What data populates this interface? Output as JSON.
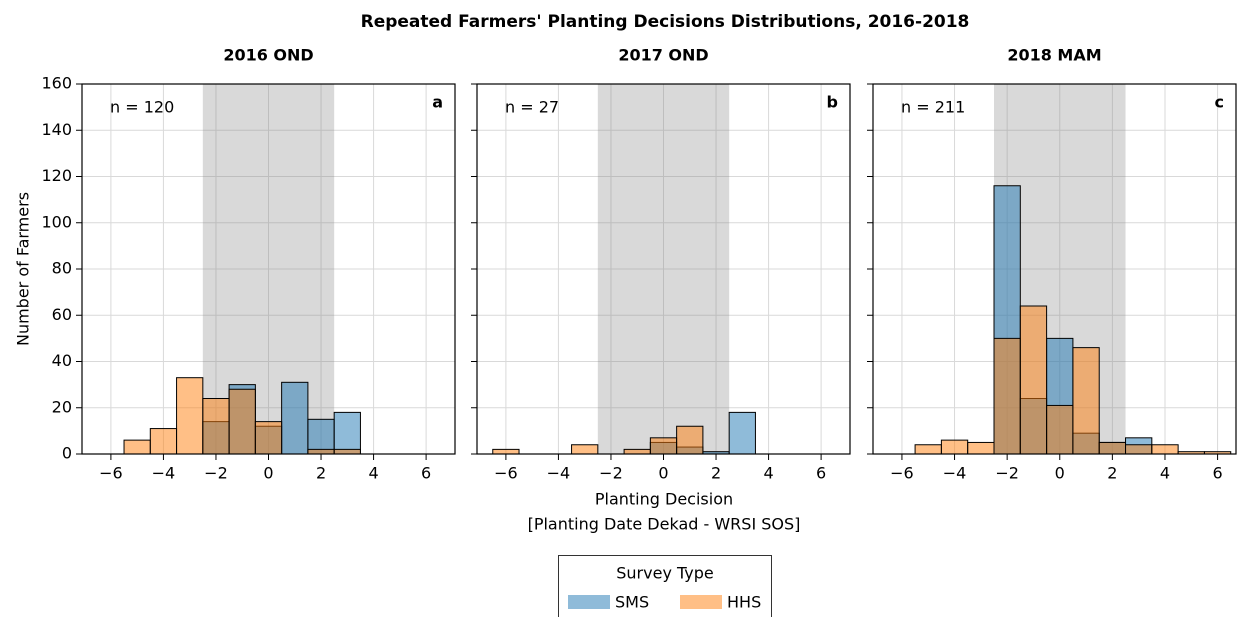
{
  "title": "Repeated Farmers' Planting Decisions Distributions, 2016-2018",
  "xlabel": [
    "Planting Decision",
    "[Planting Date Dekad - WRSI SOS]"
  ],
  "ylabel": "Number of Farmers",
  "legend_title": "Survey Type",
  "chart_data": [
    {
      "type": "histogram",
      "title": "2016 OND",
      "panel_label": "a",
      "annotation": "n = 120",
      "bins": [
        -6.5,
        -5.5,
        -4.5,
        -3.5,
        -2.5,
        -1.5,
        -0.5,
        0.5,
        1.5,
        2.5,
        3.5,
        4.5,
        5.5,
        6.5
      ],
      "series": [
        {
          "name": "SMS",
          "color": "#1f77b4",
          "values": [
            0,
            0,
            0,
            0,
            14,
            30,
            12,
            31,
            15,
            18,
            0,
            0,
            0
          ]
        },
        {
          "name": "HHS",
          "color": "#ff7f0e",
          "values": [
            0,
            6,
            11,
            33,
            24,
            28,
            14,
            0,
            2,
            2,
            0,
            0,
            0
          ]
        }
      ],
      "shaded_span": [
        -2.5,
        2.5
      ],
      "xlim": [
        -7.1,
        7.1
      ],
      "ylim": [
        0,
        160
      ],
      "xticks": [
        {
          "value": -6,
          "label": "−6"
        },
        {
          "value": -4,
          "label": "−4"
        },
        {
          "value": -2,
          "label": "−2"
        },
        0,
        2,
        4,
        6
      ],
      "yticks": [
        0,
        20,
        40,
        60,
        80,
        100,
        120,
        140,
        160
      ],
      "grid": true
    },
    {
      "type": "histogram",
      "title": "2017 OND",
      "panel_label": "b",
      "annotation": "n = 27",
      "bins": [
        -6.5,
        -5.5,
        -4.5,
        -3.5,
        -2.5,
        -1.5,
        -0.5,
        0.5,
        1.5,
        2.5,
        3.5,
        4.5,
        5.5,
        6.5
      ],
      "series": [
        {
          "name": "SMS",
          "color": "#1f77b4",
          "values": [
            0,
            0,
            0,
            0,
            0,
            0,
            5,
            3,
            1,
            18,
            0,
            0,
            0
          ]
        },
        {
          "name": "HHS",
          "color": "#ff7f0e",
          "values": [
            2,
            0,
            0,
            4,
            0,
            2,
            7,
            12,
            0,
            0,
            0,
            0,
            0
          ]
        }
      ],
      "shaded_span": [
        -2.5,
        2.5
      ],
      "xlim": [
        -7.1,
        7.1
      ],
      "ylim": [
        0,
        160
      ],
      "xticks": [
        {
          "value": -6,
          "label": "−6"
        },
        {
          "value": -4,
          "label": "−4"
        },
        {
          "value": -2,
          "label": "−2"
        },
        0,
        2,
        4,
        6
      ],
      "yticks": [
        0,
        20,
        40,
        60,
        80,
        100,
        120,
        140,
        160
      ],
      "grid": true
    },
    {
      "type": "histogram",
      "title": "2018 MAM",
      "panel_label": "c",
      "annotation": "n = 211",
      "bins": [
        -6.5,
        -5.5,
        -4.5,
        -3.5,
        -2.5,
        -1.5,
        -0.5,
        0.5,
        1.5,
        2.5,
        3.5,
        4.5,
        5.5,
        6.5
      ],
      "series": [
        {
          "name": "SMS",
          "color": "#1f77b4",
          "values": [
            0,
            0,
            0,
            0,
            116,
            24,
            50,
            9,
            5,
            7,
            0,
            0,
            0
          ]
        },
        {
          "name": "HHS",
          "color": "#ff7f0e",
          "values": [
            0,
            4,
            6,
            5,
            50,
            64,
            21,
            46,
            5,
            4,
            4,
            1,
            1
          ]
        }
      ],
      "shaded_span": [
        -2.5,
        2.5
      ],
      "xlim": [
        -7.1,
        6.7
      ],
      "ylim": [
        0,
        160
      ],
      "xticks": [
        {
          "value": -6,
          "label": "−6"
        },
        {
          "value": -4,
          "label": "−4"
        },
        {
          "value": -2,
          "label": "−2"
        },
        0,
        2,
        4,
        6
      ],
      "yticks": [
        0,
        20,
        40,
        60,
        80,
        100,
        120,
        140,
        160
      ],
      "grid": true
    }
  ]
}
